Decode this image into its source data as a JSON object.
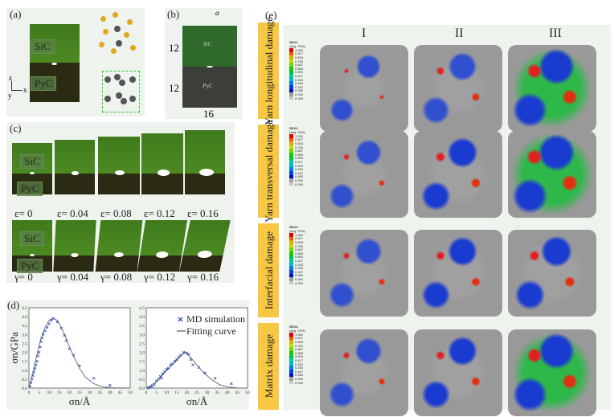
{
  "panel_a": {
    "label": "(a)",
    "sic": "SiC",
    "pyc": "PyC",
    "axes": {
      "z": "z",
      "y": "y",
      "x": "x"
    }
  },
  "panel_b": {
    "label": "(b)",
    "sic": "SiC",
    "pyc": "PyC",
    "height_top": "12",
    "height_bottom": "12",
    "width": "16",
    "angle": "α"
  },
  "panel_c": {
    "label": "(c)",
    "sic": "SiC",
    "pyc": "PyC",
    "tension": [
      "ε= 0",
      "ε= 0.04",
      "ε= 0.08",
      "ε= 0.12",
      "ε= 0.16"
    ],
    "shear": [
      "γ= 0",
      "γ= 0.04",
      "γ= 0.08",
      "γ= 0.12",
      "γ= 0.16"
    ]
  },
  "panel_d": {
    "label": "(d)"
  },
  "chart_data": [
    {
      "type": "scatter",
      "ylabel": "σn/GPa",
      "xlabel": "σn/Å",
      "xlim": [
        0,
        50
      ],
      "ylim": [
        0,
        4.5
      ],
      "xticks": [
        "0",
        "5",
        "10",
        "15",
        "20",
        "25",
        "30",
        "35",
        "40",
        "45",
        "50"
      ],
      "yticks": [
        "0.0",
        "0.5",
        "1.0",
        "1.5",
        "2.0",
        "2.5",
        "3.0",
        "3.5",
        "4.0",
        "4.5"
      ],
      "md_points": [
        [
          0.5,
          0.1
        ],
        [
          1,
          0.3
        ],
        [
          1.5,
          0.5
        ],
        [
          2,
          0.7
        ],
        [
          2.5,
          0.9
        ],
        [
          3,
          1.1
        ],
        [
          3.5,
          1.3
        ],
        [
          4,
          1.5
        ],
        [
          4.5,
          1.8
        ],
        [
          5,
          2.0
        ],
        [
          5.5,
          2.3
        ],
        [
          6,
          2.6
        ],
        [
          6.5,
          2.8
        ],
        [
          7,
          3.0
        ],
        [
          8,
          3.2
        ],
        [
          9,
          3.4
        ],
        [
          10,
          3.6
        ],
        [
          11,
          3.8
        ],
        [
          12,
          3.9
        ],
        [
          14,
          3.7
        ],
        [
          16,
          3.35
        ],
        [
          17.5,
          2.95
        ],
        [
          18.5,
          2.65
        ],
        [
          20,
          2.2
        ],
        [
          22,
          1.85
        ],
        [
          25,
          1.25
        ],
        [
          32,
          0.55
        ],
        [
          40,
          0.15
        ]
      ],
      "fit_curve": [
        [
          0,
          0
        ],
        [
          2,
          0.9
        ],
        [
          4,
          1.9
        ],
        [
          6,
          2.8
        ],
        [
          8,
          3.4
        ],
        [
          10,
          3.8
        ],
        [
          12,
          3.9
        ],
        [
          14,
          3.8
        ],
        [
          16,
          3.4
        ],
        [
          18,
          2.9
        ],
        [
          20,
          2.3
        ],
        [
          22,
          1.8
        ],
        [
          25,
          1.1
        ],
        [
          28,
          0.6
        ],
        [
          32,
          0.25
        ],
        [
          36,
          0.08
        ],
        [
          40,
          0.02
        ],
        [
          50,
          0
        ]
      ],
      "color": "#2a4fb0"
    },
    {
      "type": "scatter",
      "xlabel": "σn/Å",
      "xlim": [
        0,
        50
      ],
      "ylim": [
        0,
        4.5
      ],
      "xticks": [
        "0",
        "5",
        "10",
        "15",
        "20",
        "25",
        "30",
        "35",
        "40",
        "45",
        "50"
      ],
      "yticks": [
        "0.0",
        "0.5",
        "1.0",
        "1.5",
        "2.0",
        "2.5",
        "3.0",
        "3.5",
        "4.0",
        "4.5"
      ],
      "legend": {
        "md": "MD simulation",
        "fit": "Fitting curve",
        "position": "top-right"
      },
      "md_points": [
        [
          1,
          0
        ],
        [
          2,
          0.05
        ],
        [
          3,
          0.1
        ],
        [
          4,
          0.2
        ],
        [
          5,
          0.4
        ],
        [
          6,
          0.5
        ],
        [
          7,
          0.65
        ],
        [
          7.5,
          0.55
        ],
        [
          8,
          0.8
        ],
        [
          9,
          0.9
        ],
        [
          10,
          1.05
        ],
        [
          11,
          1.1
        ],
        [
          12,
          1.3
        ],
        [
          13,
          1.35
        ],
        [
          14,
          1.5
        ],
        [
          15,
          1.6
        ],
        [
          16,
          1.75
        ],
        [
          17,
          1.85
        ],
        [
          18.5,
          2.0
        ],
        [
          20,
          1.97
        ],
        [
          21,
          1.9
        ],
        [
          22,
          1.6
        ],
        [
          23,
          1.3
        ],
        [
          26,
          1.15
        ],
        [
          29,
          0.85
        ],
        [
          34,
          0.55
        ],
        [
          42,
          0.25
        ]
      ],
      "fit_curve": [
        [
          0,
          0
        ],
        [
          5,
          0.35
        ],
        [
          10,
          1.0
        ],
        [
          15,
          1.55
        ],
        [
          19,
          2.0
        ],
        [
          22,
          1.7
        ],
        [
          25,
          1.3
        ],
        [
          28,
          0.9
        ],
        [
          32,
          0.5
        ],
        [
          36,
          0.2
        ],
        [
          40,
          0.07
        ],
        [
          45,
          0.01
        ],
        [
          50,
          0
        ]
      ],
      "color": "#2a4fb0"
    }
  ],
  "panel_e": {
    "label": "(e)",
    "columns": [
      "I",
      "II",
      "III"
    ],
    "rows": [
      {
        "label": "Yarn longitudinal damage",
        "var": "SDV1",
        "avg": "(Avg: 75%)",
        "levels": [
          0.15,
          0.4,
          0.85
        ]
      },
      {
        "label": "Yarn transversal damage",
        "var": "SDV2",
        "avg": "(Avg: 75%)",
        "levels": [
          0.25,
          0.5,
          0.9
        ]
      },
      {
        "label": "Interfacial damage",
        "var": "SDV3",
        "avg": "(Avg: 75%)",
        "levels": [
          0.3,
          0.45,
          0.55
        ]
      },
      {
        "label": "Matrix damage",
        "var": "SDV4",
        "avg": "(Avg: 75%)",
        "levels": [
          0.3,
          0.45,
          0.85
        ]
      }
    ],
    "legend_values": [
      "1.000",
      "0.917",
      "0.833",
      "0.750",
      "0.667",
      "0.583",
      "0.500",
      "0.417",
      "0.333",
      "0.250",
      "0.167",
      "0.083",
      "0.000",
      "0.000"
    ],
    "legend_colors": [
      "#e00000",
      "#e85a00",
      "#d8b000",
      "#c8d800",
      "#70d800",
      "#18c800",
      "#00c040",
      "#00c8a0",
      "#00b8d8",
      "#0080e0",
      "#0040e8",
      "#0010c8",
      "#a0a0a0",
      "#c8c8c8"
    ],
    "label_color": "#f7c843"
  }
}
